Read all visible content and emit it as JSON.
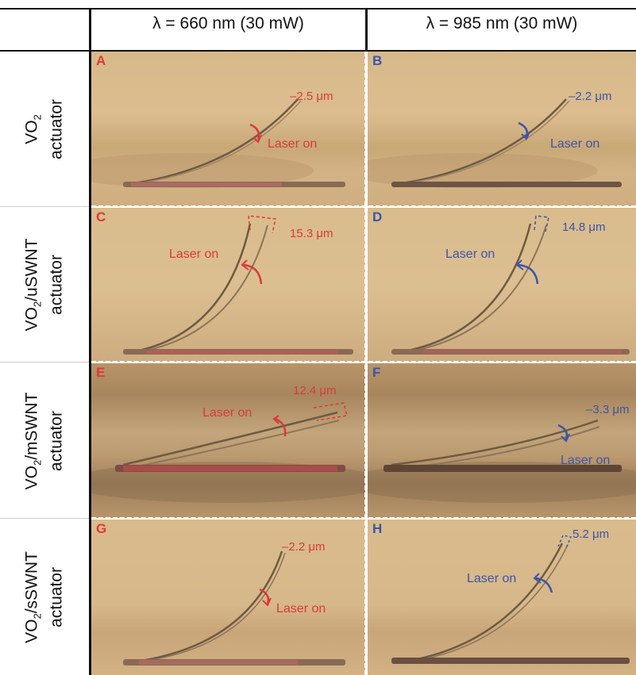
{
  "header": {
    "col1": "λ = 660 nm (30 mW)",
    "col2": "λ = 985 nm (30 mW)"
  },
  "rows": [
    {
      "label_main": "VO",
      "label_sub": "2",
      "label_rest": "",
      "label_line2": "actuator"
    },
    {
      "label_main": "VO",
      "label_sub": "2",
      "label_rest": "/uSWNT",
      "label_line2": "actuator"
    },
    {
      "label_main": "VO",
      "label_sub": "2",
      "label_rest": "/mSWNT",
      "label_line2": "actuator"
    },
    {
      "label_main": "VO",
      "label_sub": "2",
      "label_rest": "/sSWNT",
      "label_line2": "actuator"
    }
  ],
  "panels": {
    "A": {
      "letter": "A",
      "measure": "–2.5 μm",
      "laser": "Laser on",
      "color": "#d93a3a"
    },
    "B": {
      "letter": "B",
      "measure": "–2.2 μm",
      "laser": "Laser on",
      "color": "#3b55a8"
    },
    "C": {
      "letter": "C",
      "measure": "15.3 μm",
      "laser": "Laser on",
      "color": "#d93a3a"
    },
    "D": {
      "letter": "D",
      "measure": "14.8 μm",
      "laser": "Laser on",
      "color": "#3b55a8"
    },
    "E": {
      "letter": "E",
      "measure": "12.4 μm",
      "laser": "Laser on",
      "color": "#d93a3a"
    },
    "F": {
      "letter": "F",
      "measure": "–3.3 μm",
      "laser": "Laser on",
      "color": "#3b55a8"
    },
    "G": {
      "letter": "G",
      "measure": "–2.2 μm",
      "laser": "Laser on",
      "color": "#d93a3a"
    },
    "H": {
      "letter": "H",
      "measure": "5.2 μm",
      "laser": "Laser on",
      "color": "#3b55a8"
    }
  }
}
